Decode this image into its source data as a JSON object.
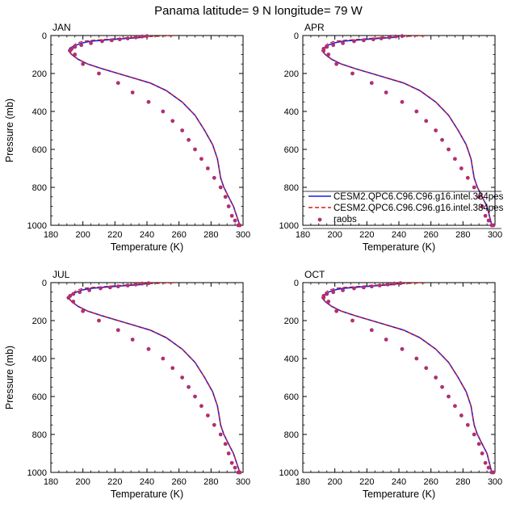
{
  "title": "Panama  latitude= 9 N longitude= 79 W",
  "colors": {
    "model1": "#1c1ce0",
    "model2": "#d81818",
    "obs": "#b03070"
  },
  "legend": {
    "items": [
      {
        "label": "CESM2.QPC6.C96.C96.g16.intel.384pes",
        "style": "solid-line",
        "color": "#1c1ce0"
      },
      {
        "label": "CESM2.QPC6.C96.C96.g16.intel.384pes",
        "style": "dashed-line",
        "color": "#d81818"
      },
      {
        "label": "raobs",
        "style": "marker",
        "color": "#b03070"
      }
    ]
  },
  "chart_data": [
    {
      "type": "line",
      "panel_label": "JAN",
      "xlabel": "Temperature (K)",
      "ylabel": "Pressure (mb)",
      "xlim": [
        180,
        300
      ],
      "ylim": [
        1000,
        0
      ],
      "xticks": [
        "180",
        "200",
        "220",
        "240",
        "260",
        "280",
        "300"
      ],
      "yticks": [
        "0",
        "200",
        "400",
        "600",
        "800",
        "1000"
      ],
      "series": [
        {
          "name": "CESM2.QPC6.C96.C96.g16.intel.384pes",
          "style": "solid",
          "x": [
            240,
            236,
            228,
            220,
            212,
            205,
            199,
            196,
            192,
            191,
            193,
            197,
            203,
            212,
            222,
            232,
            242,
            252,
            262,
            270,
            276,
            281,
            284,
            285,
            286,
            288,
            291,
            294,
            298
          ],
          "y": [
            5,
            10,
            15,
            20,
            25,
            30,
            40,
            50,
            65,
            80,
            100,
            125,
            150,
            175,
            200,
            225,
            250,
            290,
            350,
            420,
            500,
            575,
            650,
            700,
            750,
            800,
            850,
            900,
            1000
          ]
        },
        {
          "name": "CESM2.QPC6.C96.C96.g16.intel.384pes",
          "style": "dashed",
          "x": [
            256,
            250,
            244,
            238,
            230,
            222,
            214,
            206,
            200,
            196,
            193,
            191,
            193,
            197,
            203,
            212,
            222,
            232,
            242,
            252,
            262,
            270,
            276,
            281,
            284,
            285,
            286,
            288,
            291,
            294,
            298
          ],
          "y": [
            2,
            3,
            5,
            7,
            10,
            15,
            20,
            25,
            30,
            40,
            60,
            80,
            100,
            125,
            150,
            175,
            200,
            225,
            250,
            290,
            350,
            420,
            500,
            575,
            650,
            700,
            750,
            800,
            850,
            900,
            1000
          ]
        },
        {
          "name": "raobs",
          "style": "marker",
          "x": [
            240,
            237,
            233,
            228,
            223,
            218,
            212,
            205,
            199,
            195,
            193,
            192,
            195,
            200,
            210,
            222,
            231,
            241,
            250,
            256,
            262,
            266,
            270,
            274,
            278,
            282,
            286,
            289,
            291,
            293,
            295,
            297,
            298
          ],
          "y": [
            3,
            5,
            10,
            15,
            20,
            25,
            30,
            40,
            50,
            60,
            70,
            80,
            100,
            150,
            200,
            250,
            300,
            350,
            400,
            450,
            500,
            550,
            600,
            650,
            700,
            750,
            800,
            850,
            900,
            950,
            975,
            1000,
            1000
          ]
        }
      ]
    },
    {
      "type": "line",
      "panel_label": "APR",
      "xlabel": "Temperature (K)",
      "ylabel": "",
      "xlim": [
        180,
        300
      ],
      "ylim": [
        1000,
        0
      ],
      "xticks": [
        "180",
        "200",
        "220",
        "240",
        "260",
        "280",
        "300"
      ],
      "yticks": [
        "0",
        "200",
        "400",
        "600",
        "800",
        "1000"
      ],
      "series": [
        {
          "name": "CESM2.QPC6.C96.C96.g16.intel.384pes",
          "style": "solid",
          "x": [
            240,
            236,
            228,
            220,
            212,
            205,
            199,
            196,
            193,
            192,
            194,
            198,
            204,
            213,
            223,
            233,
            243,
            253,
            263,
            271,
            277,
            282,
            285,
            286,
            287,
            289,
            292,
            295,
            298
          ],
          "y": [
            5,
            10,
            15,
            20,
            25,
            30,
            40,
            50,
            65,
            80,
            100,
            125,
            150,
            175,
            200,
            225,
            250,
            290,
            350,
            420,
            500,
            575,
            650,
            700,
            750,
            800,
            850,
            900,
            1000
          ]
        },
        {
          "name": "CESM2.QPC6.C96.C96.g16.intel.384pes",
          "style": "dashed",
          "x": [
            256,
            250,
            244,
            238,
            230,
            222,
            214,
            206,
            200,
            196,
            193,
            192,
            194,
            198,
            204,
            213,
            223,
            233,
            243,
            253,
            263,
            271,
            277,
            282,
            285,
            286,
            287,
            289,
            292,
            295,
            298
          ],
          "y": [
            2,
            3,
            5,
            7,
            10,
            15,
            20,
            25,
            30,
            40,
            60,
            80,
            100,
            125,
            150,
            175,
            200,
            225,
            250,
            290,
            350,
            420,
            500,
            575,
            650,
            700,
            750,
            800,
            850,
            900,
            1000
          ]
        },
        {
          "name": "raobs",
          "style": "marker",
          "x": [
            242,
            238,
            234,
            229,
            224,
            218,
            212,
            205,
            199,
            195,
            193,
            193,
            196,
            201,
            211,
            223,
            232,
            242,
            251,
            257,
            263,
            267,
            271,
            275,
            279,
            283,
            287,
            290,
            292,
            294,
            296,
            298,
            299
          ],
          "y": [
            3,
            5,
            10,
            15,
            20,
            25,
            30,
            40,
            50,
            60,
            70,
            80,
            100,
            150,
            200,
            250,
            300,
            350,
            400,
            450,
            500,
            550,
            600,
            650,
            700,
            750,
            800,
            850,
            900,
            950,
            975,
            1000,
            1000
          ]
        }
      ]
    },
    {
      "type": "line",
      "panel_label": "JUL",
      "xlabel": "Temperature (K)",
      "ylabel": "Pressure (mb)",
      "xlim": [
        180,
        300
      ],
      "ylim": [
        1000,
        0
      ],
      "xticks": [
        "180",
        "200",
        "220",
        "240",
        "260",
        "280",
        "300"
      ],
      "yticks": [
        "0",
        "200",
        "400",
        "600",
        "800",
        "1000"
      ],
      "series": [
        {
          "name": "CESM2.QPC6.C96.C96.g16.intel.384pes",
          "style": "solid",
          "x": [
            240,
            236,
            228,
            220,
            212,
            205,
            199,
            196,
            192,
            191,
            193,
            197,
            203,
            212,
            222,
            232,
            242,
            252,
            262,
            270,
            276,
            281,
            284,
            285,
            286,
            288,
            291,
            294,
            298
          ],
          "y": [
            5,
            10,
            15,
            20,
            25,
            30,
            40,
            50,
            65,
            80,
            100,
            125,
            150,
            175,
            200,
            225,
            250,
            290,
            350,
            420,
            500,
            575,
            650,
            700,
            750,
            800,
            850,
            900,
            1000
          ]
        },
        {
          "name": "CESM2.QPC6.C96.C96.g16.intel.384pes",
          "style": "dashed",
          "x": [
            256,
            250,
            244,
            238,
            230,
            222,
            214,
            206,
            200,
            196,
            193,
            191,
            193,
            197,
            203,
            212,
            222,
            232,
            242,
            252,
            262,
            270,
            276,
            281,
            284,
            285,
            286,
            288,
            291,
            294,
            298
          ],
          "y": [
            2,
            3,
            5,
            7,
            10,
            15,
            20,
            25,
            30,
            40,
            60,
            80,
            100,
            125,
            150,
            175,
            200,
            225,
            250,
            290,
            350,
            420,
            500,
            575,
            650,
            700,
            750,
            800,
            850,
            900,
            1000
          ]
        },
        {
          "name": "raobs",
          "style": "marker",
          "x": [
            241,
            237,
            233,
            228,
            222,
            217,
            211,
            204,
            198,
            194,
            192,
            191,
            194,
            200,
            210,
            222,
            231,
            241,
            250,
            256,
            262,
            266,
            270,
            274,
            278,
            282,
            286,
            289,
            291,
            293,
            295,
            297,
            298
          ],
          "y": [
            3,
            5,
            10,
            15,
            20,
            25,
            30,
            40,
            50,
            60,
            70,
            80,
            100,
            150,
            200,
            250,
            300,
            350,
            400,
            450,
            500,
            550,
            600,
            650,
            700,
            750,
            800,
            850,
            900,
            950,
            975,
            1000,
            1000
          ]
        }
      ]
    },
    {
      "type": "line",
      "panel_label": "OCT",
      "xlabel": "Temperature (K)",
      "ylabel": "",
      "xlim": [
        180,
        300
      ],
      "ylim": [
        1000,
        0
      ],
      "xticks": [
        "180",
        "200",
        "220",
        "240",
        "260",
        "280",
        "300"
      ],
      "yticks": [
        "0",
        "200",
        "400",
        "600",
        "800",
        "1000"
      ],
      "series": [
        {
          "name": "CESM2.QPC6.C96.C96.g16.intel.384pes",
          "style": "solid",
          "x": [
            240,
            236,
            228,
            220,
            212,
            205,
            199,
            196,
            193,
            192,
            194,
            198,
            204,
            213,
            223,
            233,
            243,
            253,
            263,
            271,
            277,
            282,
            285,
            286,
            287,
            289,
            292,
            295,
            298
          ],
          "y": [
            5,
            10,
            15,
            20,
            25,
            30,
            40,
            50,
            65,
            80,
            100,
            125,
            150,
            175,
            200,
            225,
            250,
            290,
            350,
            420,
            500,
            575,
            650,
            700,
            750,
            800,
            850,
            900,
            1000
          ]
        },
        {
          "name": "CESM2.QPC6.C96.C96.g16.intel.384pes",
          "style": "dashed",
          "x": [
            256,
            250,
            244,
            238,
            230,
            222,
            214,
            206,
            200,
            196,
            193,
            192,
            194,
            198,
            204,
            213,
            223,
            233,
            243,
            253,
            263,
            271,
            277,
            282,
            285,
            286,
            287,
            289,
            292,
            295,
            298
          ],
          "y": [
            2,
            3,
            5,
            7,
            10,
            15,
            20,
            25,
            30,
            40,
            60,
            80,
            100,
            125,
            150,
            175,
            200,
            225,
            250,
            290,
            350,
            420,
            500,
            575,
            650,
            700,
            750,
            800,
            850,
            900,
            1000
          ]
        },
        {
          "name": "raobs",
          "style": "marker",
          "x": [
            241,
            237,
            233,
            228,
            223,
            218,
            212,
            205,
            199,
            195,
            193,
            193,
            196,
            201,
            211,
            223,
            232,
            242,
            251,
            257,
            263,
            267,
            271,
            275,
            279,
            283,
            287,
            290,
            292,
            294,
            296,
            298,
            299
          ],
          "y": [
            3,
            5,
            10,
            15,
            20,
            25,
            30,
            40,
            50,
            60,
            70,
            80,
            100,
            150,
            200,
            250,
            300,
            350,
            400,
            450,
            500,
            550,
            600,
            650,
            700,
            750,
            800,
            850,
            900,
            950,
            975,
            1000,
            1000
          ]
        }
      ]
    }
  ]
}
